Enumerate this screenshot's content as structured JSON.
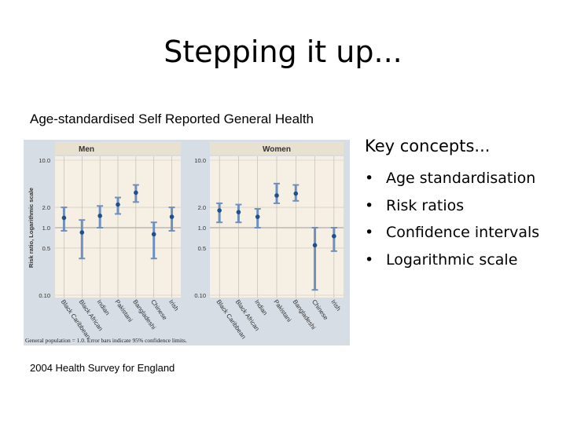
{
  "slide": {
    "title": "Stepping it up...",
    "subtitle": "Age-standardised Self Reported General Health",
    "source": "2004 Health Survey for England"
  },
  "concepts": {
    "heading": "Key concepts...",
    "bullet": "•",
    "items": [
      "Age standardisation",
      "Risk ratios",
      "Confidence intervals",
      "Logarithmic scale"
    ]
  },
  "colors": {
    "background": "#d6dde4",
    "panel_header": "#e8e1cf",
    "panel": "#f6f0e4",
    "point": "#1f4f8c",
    "error_bar": "#6f90bf",
    "reference_line": "#9a9a9a"
  },
  "chart_data": {
    "type": "scatter",
    "ylabel": "Risk ratio, Logarithmic scale",
    "yscale": "log",
    "ylim": [
      0.1,
      10
    ],
    "yticks": [
      10.0,
      2.0,
      1.0,
      0.5,
      0.1
    ],
    "ytick_labels": [
      "10.0",
      "2.0",
      "1.0",
      "0.5",
      "0.10"
    ],
    "reference_value": 1.0,
    "categories": [
      "Black Caribbean",
      "Black African",
      "Indian",
      "Pakistani",
      "Bangladeshi",
      "Chinese",
      "Irish"
    ],
    "panels": [
      {
        "name": "Men",
        "values": [
          1.4,
          0.85,
          1.5,
          2.2,
          3.3,
          0.8,
          1.45
        ],
        "lower": [
          0.9,
          0.35,
          1.0,
          1.6,
          2.4,
          0.35,
          0.9
        ],
        "upper": [
          2.0,
          1.3,
          2.1,
          2.8,
          4.3,
          1.2,
          2.0
        ]
      },
      {
        "name": "Women",
        "values": [
          1.8,
          1.7,
          1.45,
          3.0,
          3.2,
          0.55,
          0.75
        ],
        "lower": [
          1.2,
          1.2,
          1.0,
          2.3,
          2.5,
          0.12,
          0.45
        ],
        "upper": [
          2.3,
          2.2,
          1.9,
          4.5,
          4.3,
          1.0,
          1.0
        ]
      }
    ],
    "note": "General population = 1.0. Error bars indicate 95% confidence limits."
  }
}
